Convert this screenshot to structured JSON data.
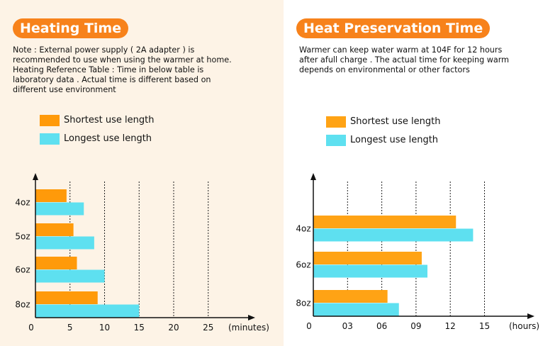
{
  "colors": {
    "shortest": "#ffa315",
    "shortest_left": "#ff9a0a",
    "longest": "#5ee0f0",
    "pill": "#f7821b"
  },
  "left": {
    "title": "Heating Time",
    "note": "Note : External power supply ( 2A adapter ) is\nrecommended to use when using the warmer at home.\nHeating Reference Table : Time in below table is\nlaboratory data . Actual time is different based on\ndifferent use environment",
    "legend": [
      "Shortest use length",
      "Longest use length"
    ]
  },
  "right": {
    "title": "Heat Preservation Time",
    "note": "Warmer can keep water warm at 104F for 12 hours\nafter afull charge . The actual time for keeping warm\ndepends on environmental or other factors",
    "legend": [
      "Shortest use length",
      "Longest use length"
    ]
  },
  "chart_data": [
    {
      "type": "bar",
      "orientation": "horizontal",
      "title": "Heating Time",
      "categories": [
        "4oz",
        "5oz",
        "6oz",
        "8oz"
      ],
      "series": [
        {
          "name": "Shortest use length",
          "values": [
            4.5,
            5.5,
            6,
            9
          ]
        },
        {
          "name": "Longest use length",
          "values": [
            7,
            8.5,
            10,
            15
          ]
        }
      ],
      "x_ticks": [
        "0",
        "5",
        "10",
        "15",
        "20",
        "25"
      ],
      "xlabel": "(minutes)",
      "xlim": [
        0,
        30
      ],
      "grid": "dotted vertical",
      "legend": "top-left"
    },
    {
      "type": "bar",
      "orientation": "horizontal",
      "title": "Heat Preservation Time",
      "categories": [
        "4oz",
        "6oz",
        "8oz"
      ],
      "series": [
        {
          "name": "Shortest use length",
          "values": [
            12.5,
            9.5,
            6.5
          ]
        },
        {
          "name": "Longest use length",
          "values": [
            14,
            10,
            7.5
          ]
        }
      ],
      "x_ticks": [
        "0",
        "03",
        "06",
        "09",
        "12",
        "15"
      ],
      "xlabel": "(hours)",
      "xlim": [
        0,
        18
      ],
      "grid": "dotted vertical",
      "legend": "top-left"
    }
  ]
}
